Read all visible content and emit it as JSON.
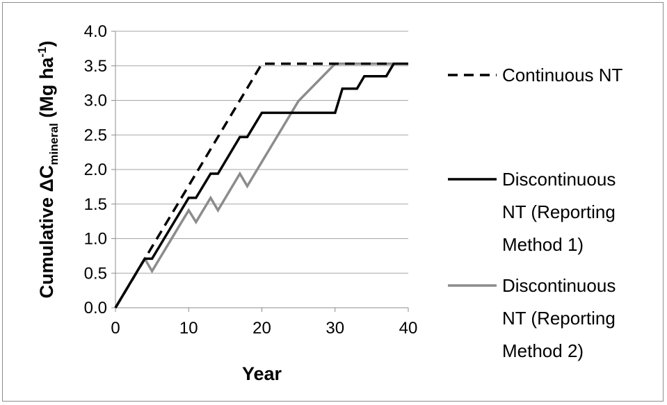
{
  "chart_data": {
    "type": "line",
    "xlabel": "Year",
    "ylabel": {
      "prefix": "Cumulative ΔC",
      "subscript": "mineral",
      "unit_open": " (Mg ha",
      "superscript": "-1",
      "unit_close": ")"
    },
    "xlim": [
      0,
      40
    ],
    "ylim": [
      0,
      4.0
    ],
    "x_ticks": [
      "0",
      "10",
      "20",
      "30",
      "40"
    ],
    "y_ticks": [
      "0.0",
      "0.5",
      "1.0",
      "1.5",
      "2.0",
      "2.5",
      "3.0",
      "3.5",
      "4.0"
    ],
    "grid": "horizontal",
    "legend_position": "right",
    "series": [
      {
        "name": "Continuous NT",
        "style": "dashed",
        "color": "#000000",
        "x": [
          0,
          20,
          28,
          40
        ],
        "y": [
          0.0,
          3.53,
          3.53,
          3.53
        ]
      },
      {
        "name": "Discontinuous NT (Reporting Method 1)",
        "style": "solid",
        "color": "#000000",
        "x": [
          0,
          4,
          5,
          10,
          11,
          13,
          14,
          17,
          18,
          20,
          24,
          30,
          31,
          33,
          34,
          37,
          38,
          40
        ],
        "y": [
          0.0,
          0.71,
          0.71,
          1.59,
          1.59,
          1.94,
          1.94,
          2.47,
          2.47,
          2.82,
          2.82,
          2.82,
          3.17,
          3.17,
          3.35,
          3.35,
          3.53,
          3.53
        ]
      },
      {
        "name": "Discontinuous NT (Reporting Method 2)",
        "style": "solid",
        "color": "#8c8c8c",
        "x": [
          0,
          4,
          5,
          10,
          11,
          13,
          14,
          17,
          18,
          25,
          30,
          40
        ],
        "y": [
          0.0,
          0.71,
          0.53,
          1.41,
          1.24,
          1.59,
          1.41,
          1.94,
          1.76,
          2.99,
          3.53,
          3.53
        ]
      }
    ],
    "legend": [
      {
        "lines": [
          "Continuous NT"
        ]
      },
      {
        "lines": [
          "Discontinuous",
          "NT (Reporting",
          "Method 1)"
        ]
      },
      {
        "lines": [
          "Discontinuous",
          "NT (Reporting",
          "Method 2)"
        ]
      }
    ]
  }
}
